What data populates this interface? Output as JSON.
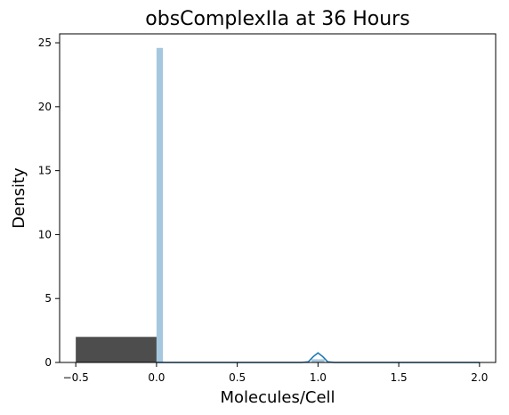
{
  "chart_data": {
    "type": "bar",
    "title": "obsComplexIIa at 36 Hours",
    "xlabel": "Molecules/Cell",
    "ylabel": "Density",
    "xlim": [
      -0.6,
      2.1
    ],
    "ylim": [
      0,
      25.7
    ],
    "xticks": [
      -0.5,
      0.0,
      0.5,
      1.0,
      1.5,
      2.0
    ],
    "xtick_labels": [
      "−0.5",
      "0.0",
      "0.5",
      "1.0",
      "1.5",
      "2.0"
    ],
    "yticks": [
      0,
      5,
      10,
      15,
      20,
      25
    ],
    "ytick_labels": [
      "0",
      "5",
      "10",
      "15",
      "20",
      "25"
    ],
    "grid": false,
    "colors": {
      "hist": "#a6c8df",
      "kde": "#1f77b4",
      "dark_bar": "#4d4d4d",
      "axes": "#000000"
    },
    "series": [
      {
        "kind": "histogram",
        "bins": [
          {
            "x0": 0.0,
            "x1": 0.04,
            "density": 24.6
          },
          {
            "x0": 0.04,
            "x1": 0.96,
            "density": 0.0
          },
          {
            "x0": 0.96,
            "x1": 1.0,
            "density": 0.25
          },
          {
            "x0": 1.0,
            "x1": 1.04,
            "density": 0.25
          }
        ]
      },
      {
        "kind": "bar",
        "x0": -0.5,
        "x1": 0.0,
        "height": 2.0
      },
      {
        "kind": "kde_line",
        "points": [
          [
            0.0,
            0.0
          ],
          [
            0.9,
            0.0
          ],
          [
            0.94,
            0.05
          ],
          [
            0.97,
            0.45
          ],
          [
            1.0,
            0.75
          ],
          [
            1.03,
            0.45
          ],
          [
            1.06,
            0.05
          ],
          [
            1.1,
            0.0
          ],
          [
            2.0,
            0.0
          ]
        ]
      }
    ]
  }
}
